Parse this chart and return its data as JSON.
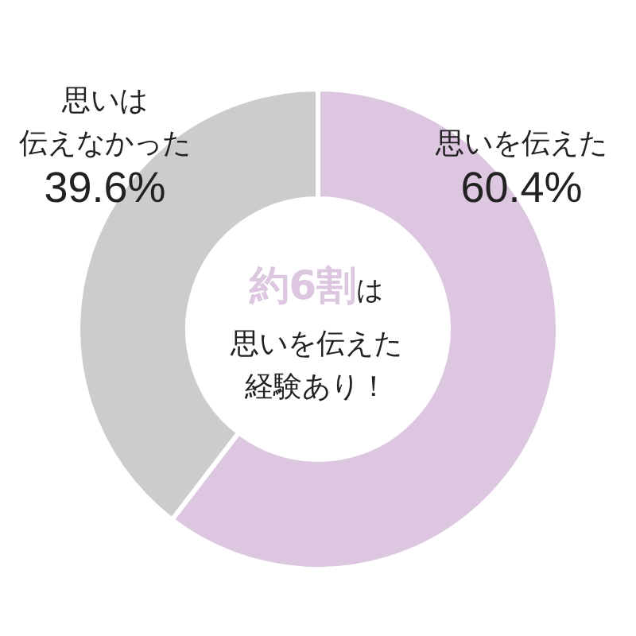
{
  "chart_data": {
    "type": "donut",
    "categories": [
      "思いを伝えた",
      "思いは伝えなかった"
    ],
    "values": [
      60.4,
      39.6
    ],
    "colors": [
      "#dcc6e0",
      "#cccccc"
    ],
    "value_labels": [
      "60.4%",
      "39.6%"
    ],
    "annotations": [
      "約6割",
      "は",
      "思いを伝えた",
      "経験あり！"
    ]
  }
}
